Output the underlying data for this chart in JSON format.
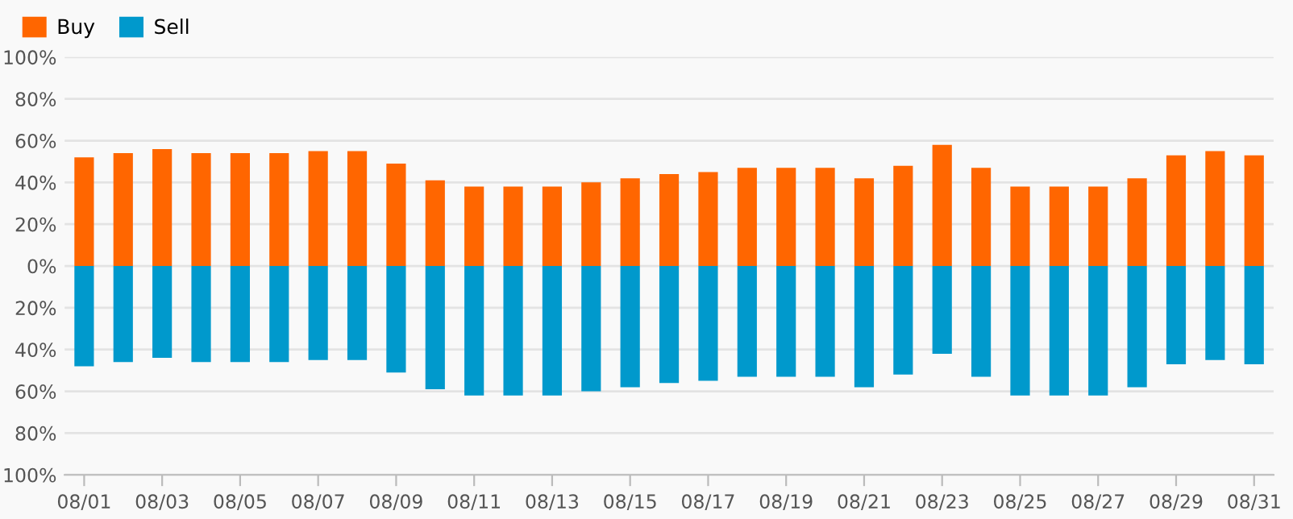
{
  "chart_data": {
    "type": "bar",
    "categories": [
      "08/01",
      null,
      "08/03",
      null,
      "08/05",
      null,
      "08/07",
      null,
      "08/09",
      null,
      "08/11",
      null,
      "08/13",
      null,
      "08/15",
      null,
      "08/17",
      null,
      "08/19",
      null,
      "08/21",
      null,
      "08/23",
      null,
      "08/25",
      null,
      "08/27",
      null,
      "08/29",
      null,
      "08/31"
    ],
    "series": [
      {
        "name": "Buy",
        "color": "#ff6600",
        "values": [
          52,
          54,
          56,
          54,
          54,
          54,
          55,
          55,
          49,
          41,
          38,
          38,
          38,
          40,
          42,
          44,
          45,
          47,
          47,
          47,
          42,
          48,
          58,
          47,
          38,
          38,
          38,
          42,
          53,
          55,
          53
        ]
      },
      {
        "name": "Sell",
        "color": "#0099cc",
        "values": [
          -48,
          -46,
          -44,
          -46,
          -46,
          -46,
          -45,
          -45,
          -51,
          -59,
          -62,
          -62,
          -62,
          -60,
          -58,
          -56,
          -55,
          -53,
          -53,
          -53,
          -58,
          -52,
          -42,
          -53,
          -62,
          -62,
          -62,
          -58,
          -47,
          -45,
          -47
        ]
      }
    ],
    "ylim": [
      -100,
      100
    ],
    "yticks": [
      {
        "value": -100,
        "label": "100%"
      },
      {
        "value": -80,
        "label": "80%"
      },
      {
        "value": -60,
        "label": "60%"
      },
      {
        "value": -40,
        "label": "40%"
      },
      {
        "value": -20,
        "label": "20%"
      },
      {
        "value": 0,
        "label": "0%"
      },
      {
        "value": 20,
        "label": "20%"
      },
      {
        "value": 40,
        "label": "40%"
      },
      {
        "value": 60,
        "label": "60%"
      },
      {
        "value": 80,
        "label": "80%"
      },
      {
        "value": 100,
        "label": "100%"
      }
    ],
    "stacked": true,
    "grid": "y",
    "legend": "top left"
  }
}
